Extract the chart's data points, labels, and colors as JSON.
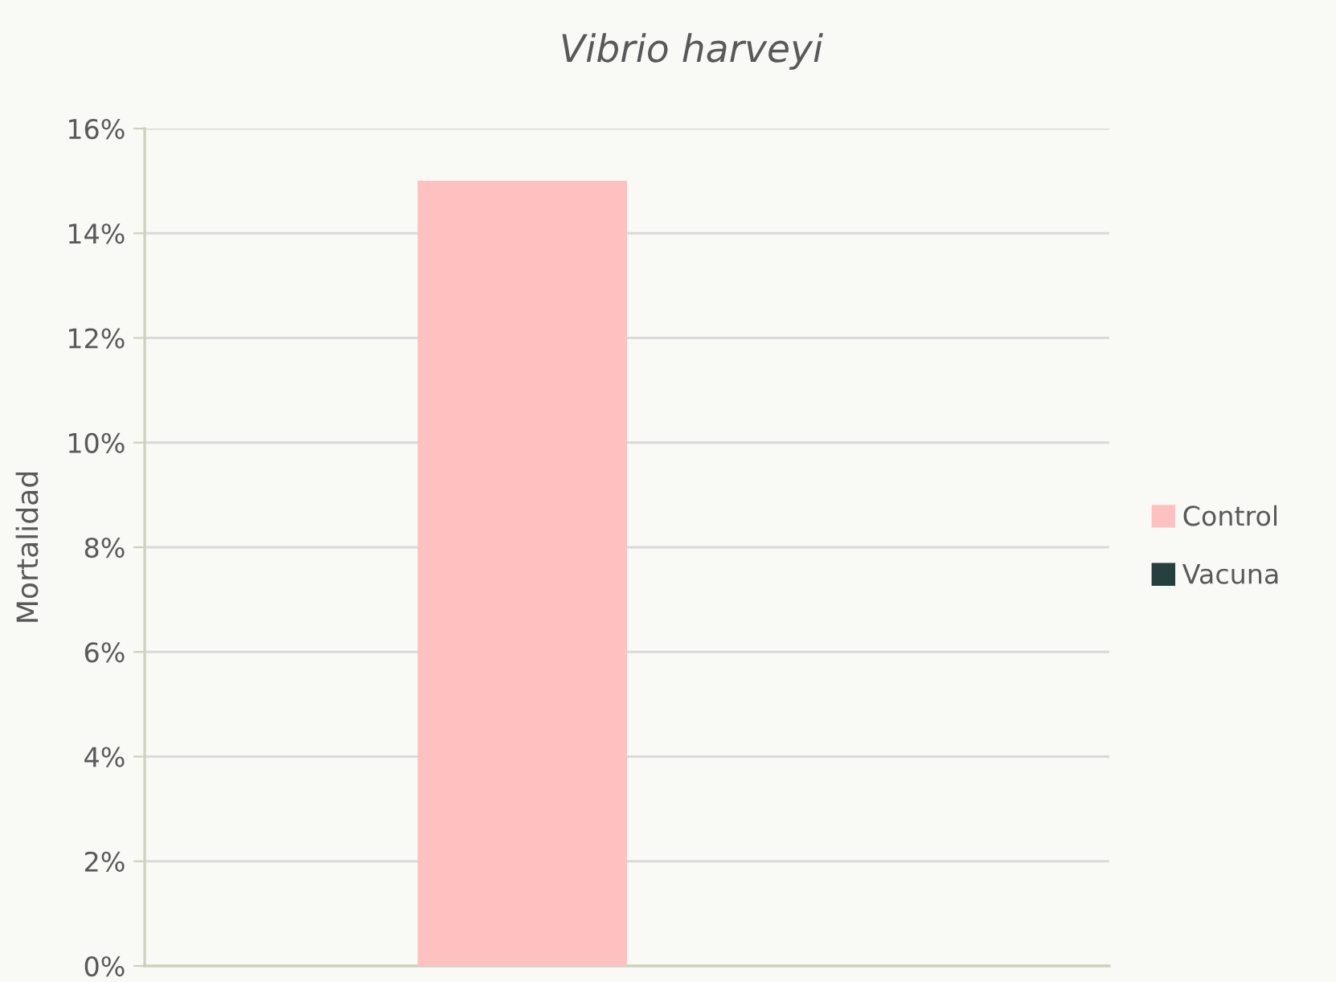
{
  "chart_data": {
    "type": "bar",
    "title": "Vibrio harveyi",
    "ylabel": "Mortalidad",
    "categories": [
      null
    ],
    "series": [
      {
        "name": "Control",
        "color": "#ffc0c0",
        "values": [
          15
        ]
      },
      {
        "name": "Vacuna",
        "color": "#263f3f",
        "values": [
          0
        ]
      }
    ],
    "ylim": [
      0,
      16
    ],
    "yticks": [
      {
        "value": 0,
        "label": "0%"
      },
      {
        "value": 2,
        "label": "2%"
      },
      {
        "value": 4,
        "label": "4%"
      },
      {
        "value": 6,
        "label": "6%"
      },
      {
        "value": 8,
        "label": "8%"
      },
      {
        "value": 10,
        "label": "10%"
      },
      {
        "value": 12,
        "label": "12%"
      },
      {
        "value": 14,
        "label": "14%"
      },
      {
        "value": 16,
        "label": "16%"
      }
    ],
    "grid": "y",
    "legend": "right"
  }
}
